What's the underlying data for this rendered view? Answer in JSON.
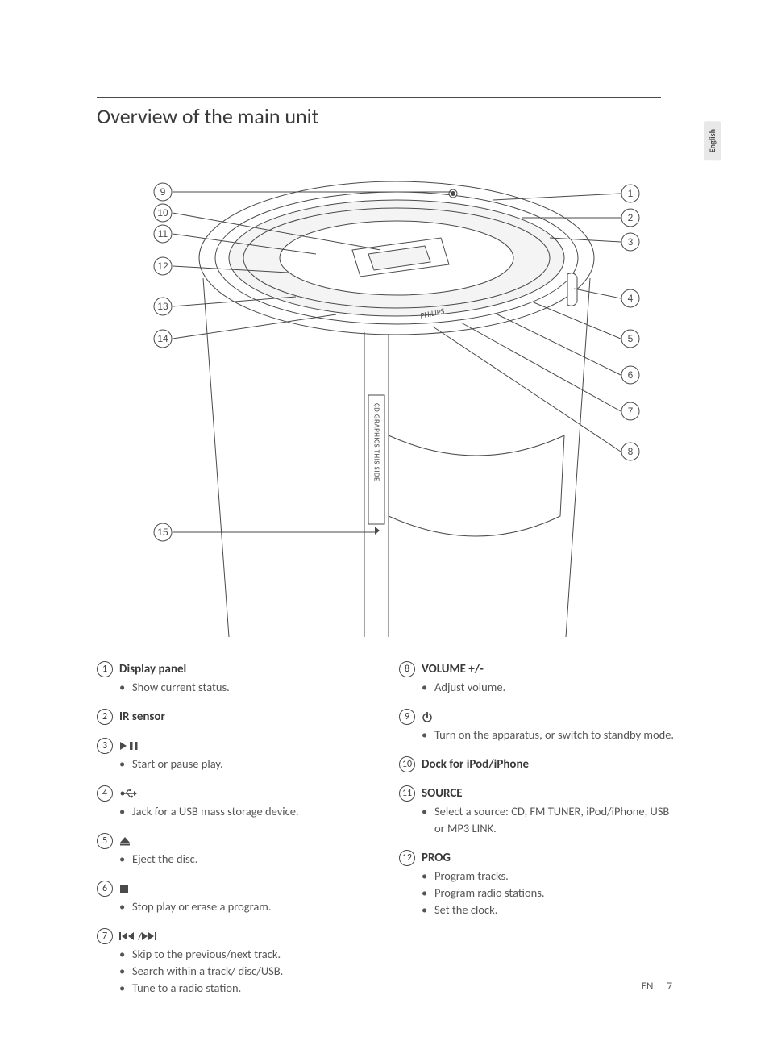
{
  "title": "Overview of the main unit",
  "language_tab": "English",
  "footer": {
    "lang": "EN",
    "page": "7"
  },
  "diagram": {
    "callouts_left": [
      "9",
      "10",
      "11",
      "12",
      "13",
      "14",
      "15"
    ],
    "callouts_right": [
      "1",
      "2",
      "3",
      "4",
      "5",
      "6",
      "7",
      "8"
    ],
    "side_text": "CD GRAPHICS THIS SIDE",
    "brand": "PHILIPS",
    "line_color": "#4a4a4a",
    "fill_color": "#ffffff",
    "light_fill": "#f4f4f4"
  },
  "items_left": [
    {
      "n": "1",
      "label": "Display panel",
      "bullets": [
        "Show current status."
      ]
    },
    {
      "n": "2",
      "label": "IR sensor",
      "bullets": []
    },
    {
      "n": "3",
      "icon": "play-pause",
      "bullets": [
        "Start or pause play."
      ]
    },
    {
      "n": "4",
      "icon": "usb",
      "bullets": [
        "Jack for a USB mass storage device."
      ]
    },
    {
      "n": "5",
      "icon": "eject",
      "bullets": [
        "Eject the disc."
      ]
    },
    {
      "n": "6",
      "icon": "stop",
      "bullets": [
        "Stop play or erase a program."
      ]
    },
    {
      "n": "7",
      "icon": "prev-next",
      "bullets": [
        "Skip to the previous/next track.",
        "Search within a track/ disc/USB.",
        "Tune to a radio station."
      ]
    }
  ],
  "items_right": [
    {
      "n": "8",
      "label": "VOLUME +/-",
      "bullets": [
        "Adjust volume."
      ]
    },
    {
      "n": "9",
      "icon": "power",
      "bullets": [
        "Turn on the apparatus, or switch to standby mode."
      ]
    },
    {
      "n": "10",
      "label": "Dock for iPod/iPhone",
      "bullets": []
    },
    {
      "n": "11",
      "label": "SOURCE",
      "bullets": [
        "Select a source: CD, FM TUNER, iPod/iPhone, USB or MP3 LINK."
      ]
    },
    {
      "n": "12",
      "label": "PROG",
      "bullets": [
        "Program tracks.",
        "Program radio stations.",
        "Set the clock."
      ]
    }
  ],
  "colors": {
    "text": "#4a4a4a",
    "bg": "#ffffff"
  }
}
